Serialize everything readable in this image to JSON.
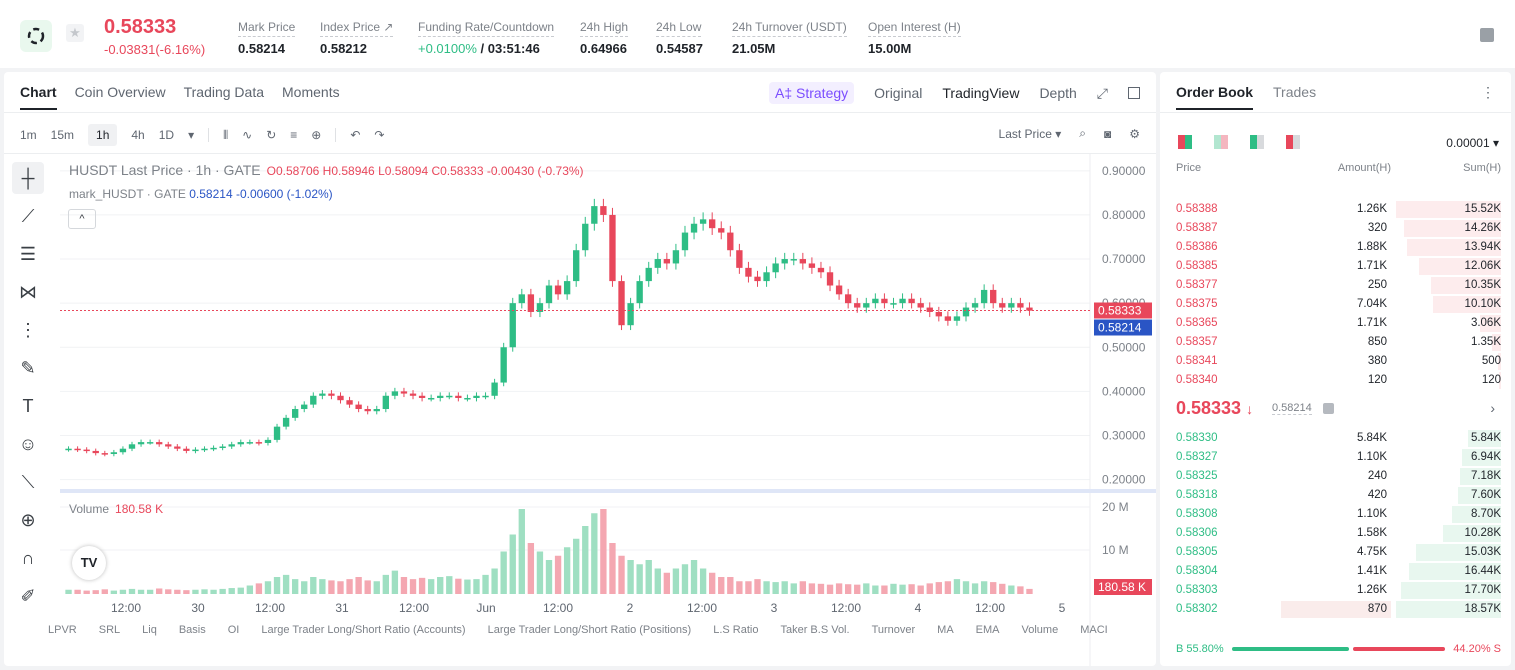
{
  "header": {
    "price": "0.58333",
    "change": "-0.03831(-6.16%)",
    "stats": [
      {
        "label": "Mark Price",
        "value": "0.58214"
      },
      {
        "label": "Index Price ↗",
        "value": "0.58212"
      },
      {
        "label": "Funding Rate/Countdown",
        "rate": "+0.0100%",
        "value": " / 03:51:46"
      },
      {
        "label": "24h High",
        "value": "0.64966"
      },
      {
        "label": "24h Low",
        "value": "0.54587"
      },
      {
        "label": "24h Turnover (USDT)",
        "value": "21.05M"
      },
      {
        "label": "Open Interest (H)",
        "value": "15.00M"
      }
    ]
  },
  "chart_tabs": [
    "Chart",
    "Coin Overview",
    "Trading Data",
    "Moments"
  ],
  "views": {
    "strategy": "A‡ Strategy",
    "original": "Original",
    "tradingview": "TradingView",
    "depth": "Depth"
  },
  "timeframes": [
    "1m",
    "15m",
    "1h",
    "4h",
    "1D"
  ],
  "timeframe_active": "1h",
  "last_price_select": "Last Price",
  "legend": {
    "title": "HUSDT Last Price · 1h · GATE",
    "ohlc": "O0.58706  H0.58946  L0.58094  C0.58333  -0.00430 (-0.73%)",
    "mark_name": "mark_HUSDT · GATE",
    "mark_values": "0.58214  -0.00600 (-1.02%)",
    "collapse": "^"
  },
  "volume": {
    "label": "Volume",
    "value": "180.58 K"
  },
  "indicators": [
    "LPVR",
    "SRL",
    "Liq",
    "Basis",
    "OI",
    "Large Trader Long/Short Ratio (Accounts)",
    "Large Trader Long/Short Ratio (Positions)",
    "L.S Ratio",
    "Taker B.S Vol.",
    "Turnover",
    "MA",
    "EMA",
    "Volume",
    "MACI"
  ],
  "chart_data": {
    "type": "candlestick",
    "price_axis": [
      "0.90000",
      "0.80000",
      "0.70000",
      "0.60000",
      "0.50000",
      "0.40000",
      "0.30000",
      "0.20000"
    ],
    "ylim": [
      0.19,
      0.92
    ],
    "volume_axis": [
      "20 M",
      "10 M"
    ],
    "time_axis": [
      "12:00",
      "30",
      "12:00",
      "31",
      "12:00",
      "Jun",
      "12:00",
      "2",
      "12:00",
      "3",
      "12:00",
      "4",
      "12:00",
      "5"
    ],
    "last_price_label": "0.58333",
    "mark_price_label": "0.58214",
    "volume_label": "180.58 K",
    "closes": [
      0.27,
      0.268,
      0.265,
      0.26,
      0.258,
      0.262,
      0.27,
      0.28,
      0.285,
      0.285,
      0.28,
      0.275,
      0.27,
      0.265,
      0.268,
      0.27,
      0.272,
      0.275,
      0.28,
      0.285,
      0.285,
      0.283,
      0.29,
      0.32,
      0.34,
      0.36,
      0.37,
      0.39,
      0.395,
      0.39,
      0.38,
      0.37,
      0.36,
      0.355,
      0.36,
      0.39,
      0.4,
      0.395,
      0.39,
      0.385,
      0.385,
      0.39,
      0.39,
      0.385,
      0.385,
      0.39,
      0.39,
      0.42,
      0.5,
      0.6,
      0.62,
      0.58,
      0.6,
      0.64,
      0.62,
      0.65,
      0.72,
      0.78,
      0.82,
      0.8,
      0.65,
      0.55,
      0.6,
      0.65,
      0.68,
      0.7,
      0.69,
      0.72,
      0.76,
      0.78,
      0.79,
      0.77,
      0.76,
      0.72,
      0.68,
      0.66,
      0.65,
      0.67,
      0.69,
      0.7,
      0.7,
      0.69,
      0.68,
      0.67,
      0.64,
      0.62,
      0.6,
      0.59,
      0.6,
      0.61,
      0.6,
      0.6,
      0.61,
      0.6,
      0.59,
      0.58,
      0.57,
      0.56,
      0.57,
      0.59,
      0.6,
      0.63,
      0.6,
      0.59,
      0.6,
      0.59,
      0.583
    ],
    "volumes": [
      1,
      1,
      0.8,
      0.9,
      1.1,
      0.8,
      1,
      1.2,
      1,
      1,
      1.3,
      1.1,
      1,
      0.9,
      1,
      1.1,
      1,
      1.2,
      1.4,
      1.5,
      2,
      2.5,
      3,
      4,
      4.5,
      3.5,
      3,
      4,
      3.5,
      3.2,
      3,
      3.5,
      4,
      3.2,
      3,
      4.5,
      5.5,
      4,
      3.5,
      3.8,
      3.5,
      4,
      4.2,
      3.6,
      3.4,
      3.5,
      4.5,
      6,
      10,
      14,
      20,
      12,
      10,
      8,
      9,
      11,
      13,
      16,
      19,
      20,
      12,
      9,
      8,
      7,
      8,
      6,
      5,
      6,
      7,
      8,
      6,
      5,
      4,
      4,
      3,
      3,
      3.5,
      3,
      2.8,
      3,
      2.5,
      3,
      2.5,
      2.4,
      2.2,
      2.5,
      2.3,
      2.2,
      2.5,
      2,
      2,
      2.4,
      2.2,
      2.3,
      2,
      2.5,
      2.8,
      3,
      3.5,
      3,
      2.5,
      3,
      2.8,
      2.4,
      2,
      1.8,
      1.2
    ]
  },
  "orderbook": {
    "tabs": [
      "Order Book",
      "Trades"
    ],
    "precision": "0.00001 ▾",
    "headers": [
      "Price",
      "Amount(H)",
      "Sum(H)"
    ],
    "asks": [
      {
        "price": "0.58388",
        "amount": "1.26K",
        "sum": "15.52K",
        "depth": 1.0
      },
      {
        "price": "0.58387",
        "amount": "320",
        "sum": "14.26K",
        "depth": 0.92
      },
      {
        "price": "0.58386",
        "amount": "1.88K",
        "sum": "13.94K",
        "depth": 0.9
      },
      {
        "price": "0.58385",
        "amount": "1.71K",
        "sum": "12.06K",
        "depth": 0.78
      },
      {
        "price": "0.58377",
        "amount": "250",
        "sum": "10.35K",
        "depth": 0.67
      },
      {
        "price": "0.58375",
        "amount": "7.04K",
        "sum": "10.10K",
        "depth": 0.65
      },
      {
        "price": "0.58365",
        "amount": "1.71K",
        "sum": "3.06K",
        "depth": 0.2
      },
      {
        "price": "0.58357",
        "amount": "850",
        "sum": "1.35K",
        "depth": 0.09
      },
      {
        "price": "0.58341",
        "amount": "380",
        "sum": "500",
        "depth": 0.03
      },
      {
        "price": "0.58340",
        "amount": "120",
        "sum": "120",
        "depth": 0.01
      }
    ],
    "mid_price": "0.58333",
    "mid_arrow": "↓",
    "mid_mark": "0.58214",
    "bids": [
      {
        "price": "0.58330",
        "amount": "5.84K",
        "sum": "5.84K",
        "depth": 0.31
      },
      {
        "price": "0.58327",
        "amount": "1.10K",
        "sum": "6.94K",
        "depth": 0.37
      },
      {
        "price": "0.58325",
        "amount": "240",
        "sum": "7.18K",
        "depth": 0.39
      },
      {
        "price": "0.58318",
        "amount": "420",
        "sum": "7.60K",
        "depth": 0.41
      },
      {
        "price": "0.58308",
        "amount": "1.10K",
        "sum": "8.70K",
        "depth": 0.47
      },
      {
        "price": "0.58306",
        "amount": "1.58K",
        "sum": "10.28K",
        "depth": 0.55
      },
      {
        "price": "0.58305",
        "amount": "4.75K",
        "sum": "15.03K",
        "depth": 0.81
      },
      {
        "price": "0.58304",
        "amount": "1.41K",
        "sum": "16.44K",
        "depth": 0.88
      },
      {
        "price": "0.58303",
        "amount": "1.26K",
        "sum": "17.70K",
        "depth": 0.95
      },
      {
        "price": "0.58302",
        "amount": "870",
        "sum": "18.57K",
        "depth": 1.0
      }
    ],
    "buy_ratio": "B 55.80%",
    "sell_ratio": "44.20% S",
    "buy_fraction": 0.558
  },
  "colors": {
    "up": "#2ebd85",
    "down": "#e8475b",
    "mark": "#2a55c5"
  }
}
